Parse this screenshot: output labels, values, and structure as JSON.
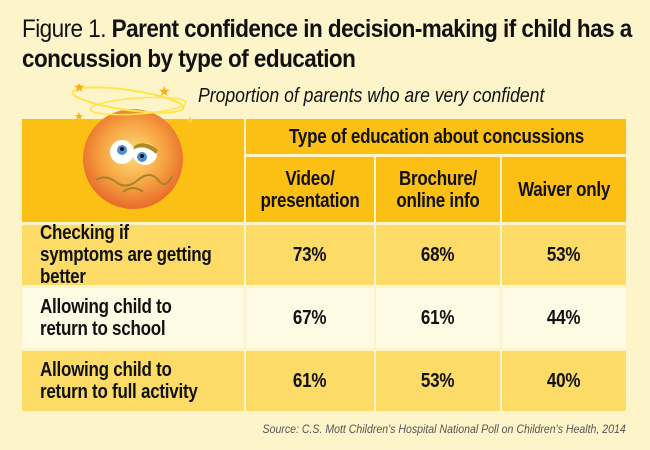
{
  "title": {
    "figure_label": "Figure 1.",
    "text": "Parent confidence in decision-making if child has a concussion by type of education"
  },
  "subtitle": "Proportion of parents who are very confident",
  "chart_data": {
    "type": "table",
    "group_header": "Type of education about concussions",
    "columns": [
      "Video/ presentation",
      "Brochure/ online info",
      "Waiver only"
    ],
    "rows": [
      {
        "label": "Checking if symptoms are getting better",
        "values": [
          "73%",
          "68%",
          "53%"
        ]
      },
      {
        "label": "Allowing child to return to school",
        "values": [
          "67%",
          "61%",
          "44%"
        ]
      },
      {
        "label": "Allowing child to return to full activity",
        "values": [
          "61%",
          "53%",
          "40%"
        ]
      }
    ]
  },
  "source": "Source: C.S. Mott Children's Hospital National Poll on Children's Health, 2014",
  "colors": {
    "header": "#fcbf14",
    "row_dark": "#fcdb66",
    "row_light": "#fefae3",
    "background": "#fef4c9"
  }
}
